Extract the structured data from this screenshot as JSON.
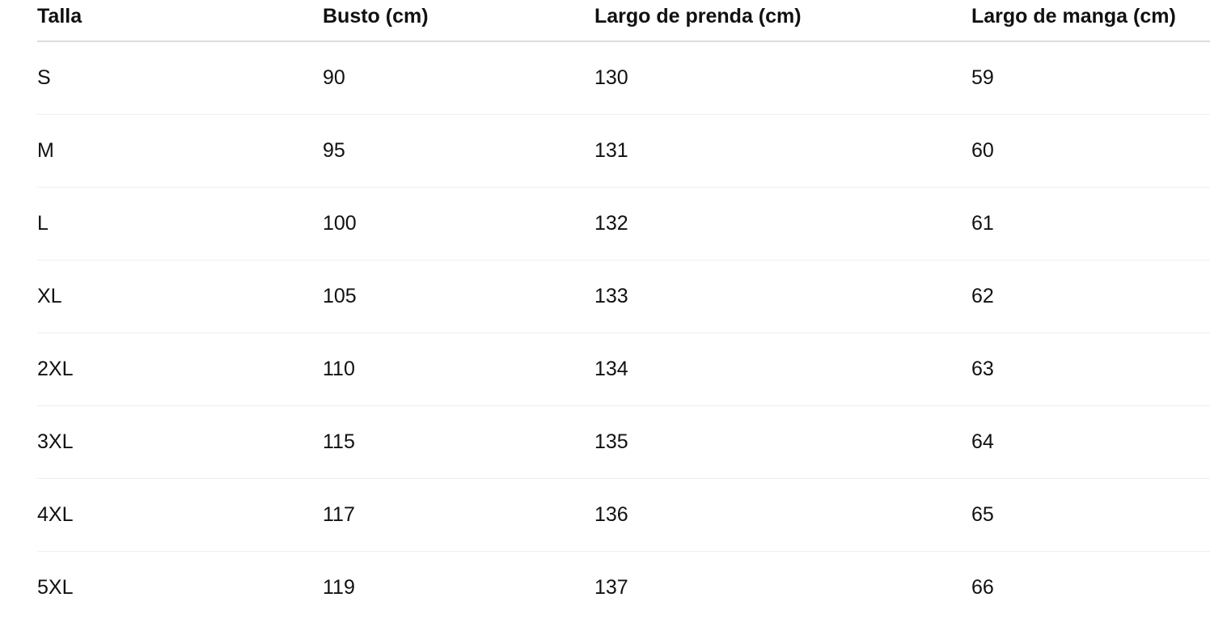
{
  "table": {
    "headers": [
      "Talla",
      "Busto (cm)",
      "Largo de prenda (cm)",
      "Largo de manga (cm)"
    ],
    "rows": [
      [
        "S",
        "90",
        "130",
        "59"
      ],
      [
        "M",
        "95",
        "131",
        "60"
      ],
      [
        "L",
        "100",
        "132",
        "61"
      ],
      [
        "XL",
        "105",
        "133",
        "62"
      ],
      [
        "2XL",
        "110",
        "134",
        "63"
      ],
      [
        "3XL",
        "115",
        "135",
        "64"
      ],
      [
        "4XL",
        "117",
        "136",
        "65"
      ],
      [
        "5XL",
        "119",
        "137",
        "66"
      ]
    ]
  }
}
